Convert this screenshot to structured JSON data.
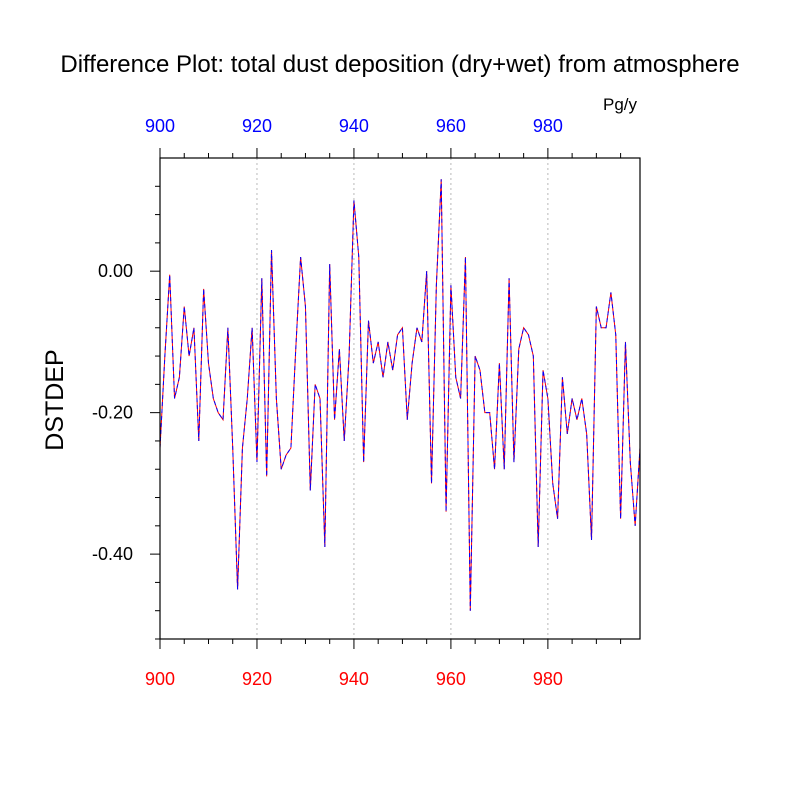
{
  "chart_data": {
    "type": "line",
    "title": "Difference Plot: total dust deposition (dry+wet) from atmosphere",
    "units": "Pg/y",
    "ylabel": "DSTDEP",
    "xlabel": "",
    "xlim": [
      900,
      999
    ],
    "ylim": [
      -0.52,
      0.16
    ],
    "x_ticks": [
      "900",
      "920",
      "940",
      "960",
      "980"
    ],
    "x_top_ticks": [
      "900",
      "920",
      "940",
      "960",
      "980"
    ],
    "y_ticks": [
      "0.00",
      "-0.20",
      "-0.40"
    ],
    "grid": "vertical dotted at major x ticks",
    "colors": {
      "bottom_axis": "#ff0000",
      "top_axis": "#0000ff",
      "line_a": "#ff0000",
      "line_b": "#0000ff"
    },
    "series": [
      {
        "x": [
          900,
          901,
          902,
          903,
          904,
          905,
          906,
          907,
          908,
          909,
          910,
          911,
          912,
          913,
          914,
          915,
          916,
          917,
          918,
          919,
          920,
          921,
          922,
          923,
          924,
          925,
          926,
          927,
          928,
          929,
          930,
          931,
          932,
          933,
          934,
          935,
          936,
          937,
          938,
          939,
          940,
          941,
          942,
          943,
          944,
          945,
          946,
          947,
          948,
          949,
          950,
          951,
          952,
          953,
          954,
          955,
          956,
          957,
          958,
          959,
          960,
          961,
          962,
          963,
          964,
          965,
          966,
          967,
          968,
          969,
          970,
          971,
          972,
          973,
          974,
          975,
          976,
          977,
          978,
          979,
          980,
          981,
          982,
          983,
          984,
          985,
          986,
          987,
          988,
          989,
          990,
          991,
          992,
          993,
          994,
          995,
          996,
          997,
          998,
          999
        ],
        "values": [
          -0.25,
          -0.12,
          -0.005,
          -0.18,
          -0.15,
          -0.05,
          -0.12,
          -0.08,
          -0.24,
          -0.025,
          -0.13,
          -0.18,
          -0.2,
          -0.21,
          -0.08,
          -0.25,
          -0.45,
          -0.25,
          -0.18,
          -0.08,
          -0.27,
          -0.01,
          -0.29,
          0.03,
          -0.18,
          -0.28,
          -0.26,
          -0.25,
          -0.11,
          0.02,
          -0.05,
          -0.31,
          -0.16,
          -0.18,
          -0.39,
          0.01,
          -0.21,
          -0.11,
          -0.24,
          -0.12,
          0.1,
          0.02,
          -0.27,
          -0.07,
          -0.13,
          -0.1,
          -0.15,
          -0.1,
          -0.14,
          -0.09,
          -0.08,
          -0.21,
          -0.13,
          -0.08,
          -0.1,
          0.0,
          -0.3,
          -0.02,
          0.13,
          -0.34,
          -0.02,
          -0.15,
          -0.18,
          0.02,
          -0.48,
          -0.12,
          -0.14,
          -0.2,
          -0.2,
          -0.28,
          -0.13,
          -0.28,
          -0.01,
          -0.27,
          -0.11,
          -0.08,
          -0.09,
          -0.12,
          -0.39,
          -0.14,
          -0.18,
          -0.3,
          -0.35,
          -0.15,
          -0.23,
          -0.18,
          -0.21,
          -0.18,
          -0.23,
          -0.38,
          -0.05,
          -0.08,
          -0.08,
          -0.03,
          -0.09,
          -0.35,
          -0.1,
          -0.27,
          -0.36,
          -0.25
        ]
      }
    ]
  }
}
